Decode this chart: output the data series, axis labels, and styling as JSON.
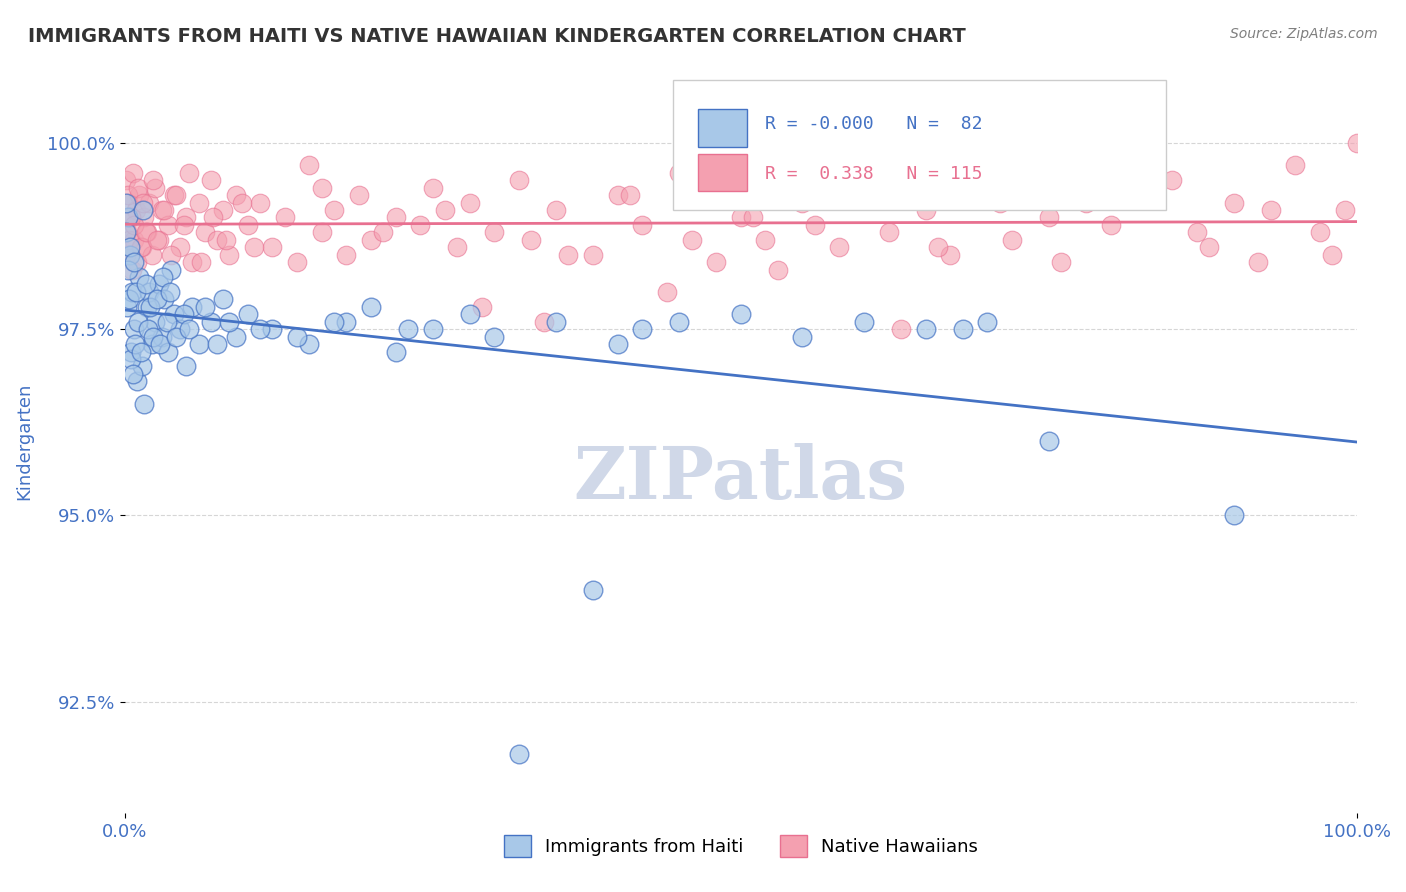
{
  "title": "IMMIGRANTS FROM HAITI VS NATIVE HAWAIIAN KINDERGARTEN CORRELATION CHART",
  "source_text": "Source: ZipAtlas.com",
  "xlabel": "",
  "ylabel": "Kindergarten",
  "xlim": [
    0.0,
    100.0
  ],
  "ylim": [
    91.0,
    101.0
  ],
  "yticks": [
    92.5,
    95.0,
    97.5,
    100.0
  ],
  "ytick_labels": [
    "92.5%",
    "95.0%",
    "97.5%",
    "100.0%"
  ],
  "xticks": [
    0.0,
    100.0
  ],
  "xtick_labels": [
    "0.0%",
    "100.0%"
  ],
  "legend_R_haiti": "-0.000",
  "legend_N_haiti": "82",
  "legend_R_native": "0.338",
  "legend_N_native": "115",
  "haiti_color": "#a8c8e8",
  "native_color": "#f4a0b0",
  "haiti_trend_color": "#4472c4",
  "native_trend_color": "#e87090",
  "watermark_text": "ZIPatlas",
  "watermark_color": "#d0d8e8",
  "background_color": "#ffffff",
  "grid_color": "#cccccc",
  "title_color": "#333333",
  "axis_label_color": "#4472c4",
  "tick_label_color": "#4472c4",
  "haiti_scatter_x": [
    0.2,
    0.3,
    0.4,
    0.5,
    0.6,
    0.8,
    1.0,
    1.2,
    1.4,
    1.5,
    1.6,
    1.8,
    2.0,
    2.2,
    2.5,
    2.8,
    3.0,
    3.2,
    3.5,
    3.8,
    4.0,
    4.5,
    5.0,
    5.5,
    6.0,
    7.0,
    8.0,
    9.0,
    10.0,
    12.0,
    15.0,
    18.0,
    20.0,
    22.0,
    25.0,
    28.0,
    30.0,
    35.0,
    40.0,
    42.0,
    50.0,
    55.0,
    60.0,
    65.0,
    70.0,
    0.1,
    0.15,
    0.25,
    0.35,
    0.45,
    0.55,
    0.65,
    0.75,
    0.85,
    0.95,
    1.1,
    1.3,
    1.7,
    1.9,
    2.1,
    2.3,
    2.6,
    2.9,
    3.1,
    3.4,
    3.7,
    4.2,
    4.8,
    5.2,
    6.5,
    7.5,
    8.5,
    11.0,
    14.0,
    17.0,
    23.0,
    45.0,
    68.0,
    75.0,
    90.0,
    38.0,
    32.0
  ],
  "haiti_scatter_y": [
    97.8,
    99.0,
    98.5,
    97.2,
    98.0,
    97.5,
    96.8,
    98.2,
    97.0,
    99.1,
    96.5,
    97.8,
    98.0,
    97.3,
    97.6,
    98.1,
    97.4,
    97.9,
    97.2,
    98.3,
    97.7,
    97.5,
    97.0,
    97.8,
    97.3,
    97.6,
    97.9,
    97.4,
    97.7,
    97.5,
    97.3,
    97.6,
    97.8,
    97.2,
    97.5,
    97.7,
    97.4,
    97.6,
    97.3,
    97.5,
    97.7,
    97.4,
    97.6,
    97.5,
    97.6,
    98.8,
    99.2,
    98.3,
    97.9,
    98.6,
    97.1,
    96.9,
    98.4,
    97.3,
    98.0,
    97.6,
    97.2,
    98.1,
    97.5,
    97.8,
    97.4,
    97.9,
    97.3,
    98.2,
    97.6,
    98.0,
    97.4,
    97.7,
    97.5,
    97.8,
    97.3,
    97.6,
    97.5,
    97.4,
    97.6,
    97.5,
    97.6,
    97.5,
    96.0,
    95.0,
    94.0,
    91.8
  ],
  "native_scatter_x": [
    0.1,
    0.2,
    0.3,
    0.4,
    0.5,
    0.6,
    0.7,
    0.8,
    0.9,
    1.0,
    1.2,
    1.4,
    1.6,
    1.8,
    2.0,
    2.2,
    2.5,
    2.8,
    3.0,
    3.5,
    4.0,
    4.5,
    5.0,
    5.5,
    6.0,
    6.5,
    7.0,
    7.5,
    8.0,
    8.5,
    9.0,
    10.0,
    11.0,
    12.0,
    13.0,
    14.0,
    15.0,
    16.0,
    17.0,
    18.0,
    19.0,
    20.0,
    22.0,
    24.0,
    25.0,
    27.0,
    28.0,
    30.0,
    32.0,
    33.0,
    35.0,
    38.0,
    40.0,
    42.0,
    45.0,
    48.0,
    50.0,
    52.0,
    55.0,
    58.0,
    60.0,
    62.0,
    65.0,
    67.0,
    70.0,
    72.0,
    75.0,
    80.0,
    85.0,
    88.0,
    90.0,
    92.0,
    95.0,
    97.0,
    99.0,
    100.0,
    0.15,
    0.25,
    0.35,
    0.55,
    0.75,
    1.1,
    1.3,
    1.5,
    1.7,
    2.3,
    2.6,
    3.2,
    3.8,
    4.2,
    4.8,
    5.2,
    6.2,
    7.2,
    8.2,
    9.5,
    10.5,
    16.0,
    21.0,
    26.0,
    36.0,
    41.0,
    46.0,
    51.0,
    56.0,
    61.0,
    66.0,
    71.0,
    76.0,
    82.0,
    87.0,
    93.0,
    98.0,
    63.0,
    44.0,
    29.0,
    53.0,
    34.0,
    78.0
  ],
  "native_scatter_y": [
    99.5,
    98.8,
    99.2,
    98.5,
    99.0,
    98.3,
    99.6,
    98.7,
    99.1,
    98.4,
    99.3,
    98.6,
    99.0,
    98.8,
    99.2,
    98.5,
    99.4,
    98.7,
    99.1,
    98.9,
    99.3,
    98.6,
    99.0,
    98.4,
    99.2,
    98.8,
    99.5,
    98.7,
    99.1,
    98.5,
    99.3,
    98.9,
    99.2,
    98.6,
    99.0,
    98.4,
    99.7,
    98.8,
    99.1,
    98.5,
    99.3,
    98.7,
    99.0,
    98.9,
    99.4,
    98.6,
    99.2,
    98.8,
    99.5,
    98.7,
    99.1,
    98.5,
    99.3,
    98.9,
    99.6,
    98.4,
    99.0,
    98.7,
    99.2,
    98.6,
    99.4,
    98.8,
    99.1,
    98.5,
    99.3,
    98.7,
    99.0,
    98.9,
    99.5,
    98.6,
    99.2,
    98.4,
    99.7,
    98.8,
    99.1,
    100.0,
    98.5,
    99.3,
    98.7,
    99.0,
    98.9,
    99.4,
    98.6,
    99.2,
    98.8,
    99.5,
    98.7,
    99.1,
    98.5,
    99.3,
    98.9,
    99.6,
    98.4,
    99.0,
    98.7,
    99.2,
    98.6,
    99.4,
    98.8,
    99.1,
    98.5,
    99.3,
    98.7,
    99.0,
    98.9,
    99.5,
    98.6,
    99.2,
    98.4,
    99.7,
    98.8,
    99.1,
    98.5,
    97.5,
    98.0,
    97.8,
    98.3,
    97.6,
    99.2
  ]
}
